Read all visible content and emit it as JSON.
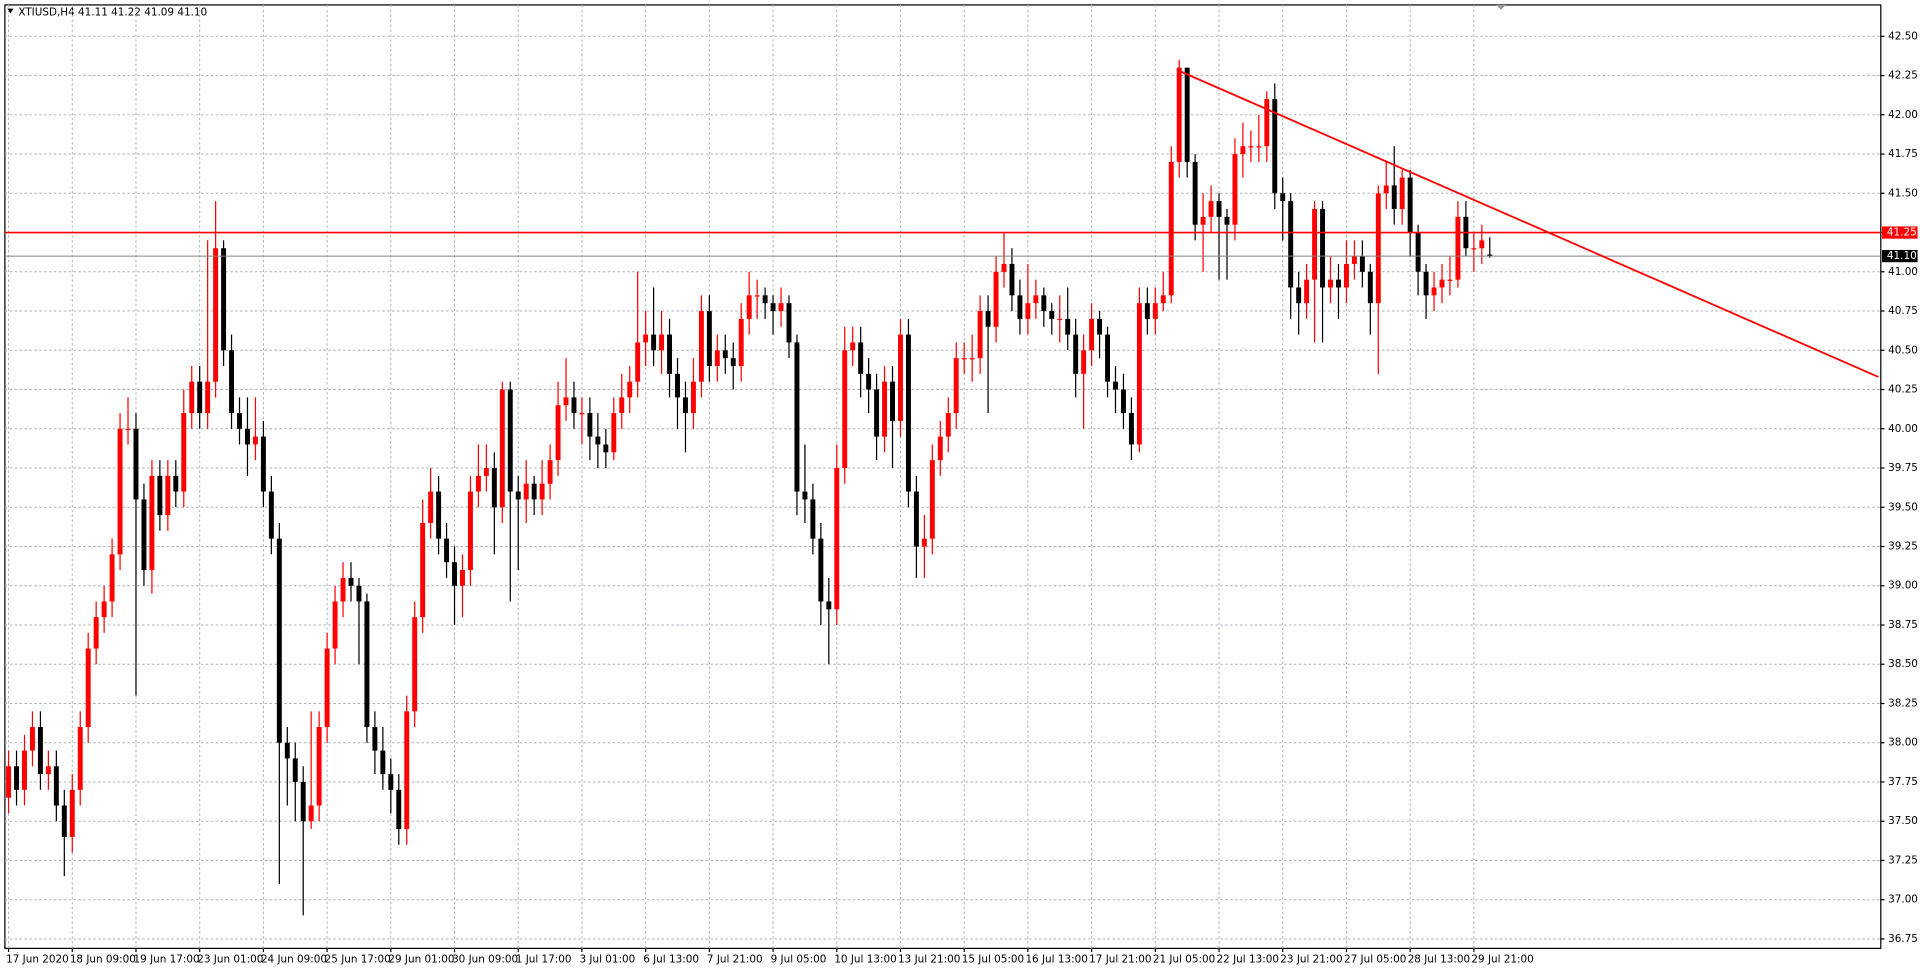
{
  "chart_data": {
    "type": "candlestick",
    "header": "XTIUSD,H4  41.11 41.22 41.09 41.10",
    "bull_color": "#ff0000",
    "bear_color": "#000000",
    "grid": true,
    "xlim": [
      -0.46,
      235.1
    ],
    "ylim": [
      36.69,
      42.7
    ],
    "yticks": [
      {
        "value": 36.75,
        "label": "36.75"
      },
      {
        "value": 37,
        "label": "37.00"
      },
      {
        "value": 37.25,
        "label": "37.25"
      },
      {
        "value": 37.5,
        "label": "37.50"
      },
      {
        "value": 37.75,
        "label": "37.75"
      },
      {
        "value": 38,
        "label": "38.00"
      },
      {
        "value": 38.25,
        "label": "38.25"
      },
      {
        "value": 38.5,
        "label": "38.50"
      },
      {
        "value": 38.75,
        "label": "38.75"
      },
      {
        "value": 39,
        "label": "39.00"
      },
      {
        "value": 39.25,
        "label": "39.25"
      },
      {
        "value": 39.5,
        "label": "39.50"
      },
      {
        "value": 39.75,
        "label": "39.75"
      },
      {
        "value": 40,
        "label": "40.00"
      },
      {
        "value": 40.25,
        "label": "40.25"
      },
      {
        "value": 40.5,
        "label": "40.50"
      },
      {
        "value": 40.75,
        "label": "40.75"
      },
      {
        "value": 41,
        "label": "41.00"
      },
      {
        "value": 41.25,
        "label": "41.25"
      },
      {
        "value": 41.5,
        "label": "41.50"
      },
      {
        "value": 41.75,
        "label": "41.75"
      },
      {
        "value": 42,
        "label": "42.00"
      },
      {
        "value": 42.25,
        "label": "42.25"
      },
      {
        "value": 42.5,
        "label": "42.50"
      }
    ],
    "xticks": [
      {
        "value": 0,
        "label": "17 Jun 2020"
      },
      {
        "value": 8,
        "label": "18 Jun 09:00"
      },
      {
        "value": 16,
        "label": "19 Jun 17:00"
      },
      {
        "value": 24,
        "label": "23 Jun 01:00"
      },
      {
        "value": 32,
        "label": "24 Jun 09:00"
      },
      {
        "value": 40,
        "label": "25 Jun 17:00"
      },
      {
        "value": 48,
        "label": "29 Jun 01:00"
      },
      {
        "value": 56,
        "label": "30 Jun 09:00"
      },
      {
        "value": 64,
        "label": "1 Jul 17:00"
      },
      {
        "value": 72,
        "label": "3 Jul 01:00"
      },
      {
        "value": 80,
        "label": "6 Jul 13:00"
      },
      {
        "value": 88,
        "label": "7 Jul 21:00"
      },
      {
        "value": 96,
        "label": "9 Jul 05:00"
      },
      {
        "value": 104,
        "label": "10 Jul 13:00"
      },
      {
        "value": 112,
        "label": "13 Jul 21:00"
      },
      {
        "value": 120,
        "label": "15 Jul 05:00"
      },
      {
        "value": 128,
        "label": "16 Jul 13:00"
      },
      {
        "value": 136,
        "label": "17 Jul 21:00"
      },
      {
        "value": 144,
        "label": "21 Jul 05:00"
      },
      {
        "value": 152,
        "label": "22 Jul 13:00"
      },
      {
        "value": 160,
        "label": "23 Jul 21:00"
      },
      {
        "value": 168,
        "label": "27 Jul 05:00"
      },
      {
        "value": 176,
        "label": "28 Jul 13:00"
      },
      {
        "value": 184,
        "label": "29 Jul 21:00"
      }
    ],
    "hline": {
      "value": 41.25,
      "label": "41.25",
      "color": "#ff0000"
    },
    "bid": {
      "value": 41.1,
      "label": "41.10",
      "color": "#808080"
    },
    "trendline": {
      "x": [
        147,
        234.8
      ],
      "y": [
        42.28,
        40.33
      ],
      "color": "#ff0000"
    },
    "candles": [
      [
        37.65,
        37.95,
        37.55,
        37.85
      ],
      [
        37.85,
        37.95,
        37.6,
        37.7
      ],
      [
        37.7,
        38.05,
        37.6,
        37.95
      ],
      [
        37.95,
        38.2,
        37.85,
        38.1
      ],
      [
        38.1,
        38.2,
        37.7,
        37.8
      ],
      [
        37.8,
        37.95,
        37.7,
        37.85
      ],
      [
        37.85,
        37.95,
        37.5,
        37.6
      ],
      [
        37.6,
        37.7,
        37.15,
        37.4
      ],
      [
        37.4,
        37.8,
        37.3,
        37.7
      ],
      [
        37.7,
        38.2,
        37.6,
        38.1
      ],
      [
        38.1,
        38.7,
        38.0,
        38.6
      ],
      [
        38.6,
        38.9,
        38.5,
        38.8
      ],
      [
        38.8,
        39.0,
        38.7,
        38.9
      ],
      [
        38.9,
        39.3,
        38.8,
        39.2
      ],
      [
        39.2,
        40.1,
        39.1,
        40.0
      ],
      [
        40.0,
        40.2,
        39.9,
        40.0
      ],
      [
        40.0,
        40.1,
        38.3,
        39.55
      ],
      [
        39.55,
        39.65,
        39.0,
        39.1
      ],
      [
        39.1,
        39.8,
        38.95,
        39.7
      ],
      [
        39.7,
        39.8,
        39.35,
        39.45
      ],
      [
        39.45,
        39.8,
        39.35,
        39.7
      ],
      [
        39.7,
        39.8,
        39.5,
        39.6
      ],
      [
        39.6,
        40.25,
        39.5,
        40.1
      ],
      [
        40.1,
        40.4,
        40.0,
        40.3
      ],
      [
        40.3,
        40.4,
        40.0,
        40.1
      ],
      [
        40.1,
        41.2,
        40.0,
        40.3
      ],
      [
        40.3,
        41.45,
        40.2,
        41.15
      ],
      [
        41.15,
        41.2,
        40.4,
        40.5
      ],
      [
        40.5,
        40.6,
        40.0,
        40.1
      ],
      [
        40.1,
        40.2,
        39.9,
        40.0
      ],
      [
        40.0,
        40.2,
        39.7,
        39.9
      ],
      [
        39.9,
        40.2,
        39.8,
        39.95
      ],
      [
        39.95,
        40.05,
        39.5,
        39.6
      ],
      [
        39.6,
        39.7,
        39.2,
        39.3
      ],
      [
        39.3,
        39.4,
        37.1,
        38.0
      ],
      [
        38.0,
        38.1,
        37.6,
        37.9
      ],
      [
        37.9,
        38.0,
        37.5,
        37.75
      ],
      [
        37.75,
        37.85,
        36.9,
        37.5
      ],
      [
        37.5,
        38.2,
        37.45,
        37.6
      ],
      [
        37.6,
        38.2,
        37.5,
        38.1
      ],
      [
        38.1,
        38.7,
        38.0,
        38.6
      ],
      [
        38.6,
        39.0,
        38.5,
        38.9
      ],
      [
        38.9,
        39.15,
        38.8,
        39.05
      ],
      [
        39.05,
        39.15,
        38.9,
        39.0
      ],
      [
        39.0,
        39.05,
        38.5,
        38.9
      ],
      [
        38.9,
        38.95,
        38.0,
        38.1
      ],
      [
        38.1,
        38.2,
        37.8,
        37.95
      ],
      [
        37.95,
        38.1,
        37.7,
        37.8
      ],
      [
        37.8,
        37.9,
        37.55,
        37.7
      ],
      [
        37.7,
        37.8,
        37.35,
        37.45
      ],
      [
        37.45,
        38.3,
        37.35,
        38.2
      ],
      [
        38.2,
        38.9,
        38.1,
        38.8
      ],
      [
        38.8,
        39.55,
        38.7,
        39.4
      ],
      [
        39.4,
        39.75,
        39.3,
        39.6
      ],
      [
        39.6,
        39.7,
        39.2,
        39.3
      ],
      [
        39.3,
        39.4,
        39.05,
        39.15
      ],
      [
        39.15,
        39.25,
        38.75,
        39.0
      ],
      [
        39.0,
        39.2,
        38.8,
        39.1
      ],
      [
        39.1,
        39.7,
        39.0,
        39.6
      ],
      [
        39.6,
        39.9,
        39.5,
        39.7
      ],
      [
        39.7,
        39.9,
        39.6,
        39.75
      ],
      [
        39.75,
        39.85,
        39.2,
        39.5
      ],
      [
        39.5,
        40.3,
        39.4,
        40.25
      ],
      [
        40.25,
        40.3,
        38.9,
        39.6
      ],
      [
        39.6,
        39.7,
        39.1,
        39.55
      ],
      [
        39.55,
        39.8,
        39.4,
        39.65
      ],
      [
        39.65,
        39.7,
        39.45,
        39.55
      ],
      [
        39.55,
        39.8,
        39.45,
        39.65
      ],
      [
        39.65,
        39.9,
        39.55,
        39.8
      ],
      [
        39.8,
        40.3,
        39.7,
        40.15
      ],
      [
        40.15,
        40.45,
        40.05,
        40.2
      ],
      [
        40.2,
        40.3,
        40.0,
        40.1
      ],
      [
        40.1,
        40.2,
        39.9,
        40.1
      ],
      [
        40.1,
        40.2,
        39.8,
        39.95
      ],
      [
        39.95,
        40.1,
        39.75,
        39.9
      ],
      [
        39.9,
        40.0,
        39.75,
        39.85
      ],
      [
        39.85,
        40.2,
        39.8,
        40.1
      ],
      [
        40.1,
        40.35,
        40.0,
        40.2
      ],
      [
        40.2,
        40.4,
        40.1,
        40.3
      ],
      [
        40.3,
        41.0,
        40.2,
        40.55
      ],
      [
        40.55,
        40.75,
        40.4,
        40.6
      ],
      [
        40.6,
        40.9,
        40.4,
        40.5
      ],
      [
        40.5,
        40.75,
        40.35,
        40.6
      ],
      [
        40.6,
        40.7,
        40.2,
        40.35
      ],
      [
        40.35,
        40.45,
        40.0,
        40.2
      ],
      [
        40.2,
        40.3,
        39.85,
        40.1
      ],
      [
        40.1,
        40.45,
        40.0,
        40.3
      ],
      [
        40.3,
        40.85,
        40.2,
        40.75
      ],
      [
        40.75,
        40.85,
        40.3,
        40.4
      ],
      [
        40.4,
        40.6,
        40.3,
        40.5
      ],
      [
        40.5,
        40.6,
        40.35,
        40.45
      ],
      [
        40.45,
        40.55,
        40.25,
        40.4
      ],
      [
        40.4,
        40.8,
        40.3,
        40.7
      ],
      [
        40.7,
        41.0,
        40.6,
        40.85
      ],
      [
        40.85,
        40.95,
        40.7,
        40.85
      ],
      [
        40.85,
        40.9,
        40.7,
        40.8
      ],
      [
        40.8,
        40.85,
        40.6,
        40.75
      ],
      [
        40.75,
        40.9,
        40.65,
        40.8
      ],
      [
        40.8,
        40.85,
        40.45,
        40.55
      ],
      [
        40.55,
        40.6,
        39.45,
        39.6
      ],
      [
        39.6,
        39.9,
        39.4,
        39.55
      ],
      [
        39.55,
        39.65,
        39.2,
        39.3
      ],
      [
        39.3,
        39.4,
        38.75,
        38.9
      ],
      [
        38.9,
        39.05,
        38.5,
        38.85
      ],
      [
        38.85,
        39.9,
        38.75,
        39.75
      ],
      [
        39.75,
        40.65,
        39.65,
        40.5
      ],
      [
        40.5,
        40.65,
        40.4,
        40.55
      ],
      [
        40.55,
        40.65,
        40.2,
        40.35
      ],
      [
        40.35,
        40.45,
        40.1,
        40.25
      ],
      [
        40.25,
        40.35,
        39.8,
        39.95
      ],
      [
        39.95,
        40.4,
        39.85,
        40.3
      ],
      [
        40.3,
        40.4,
        39.75,
        40.05
      ],
      [
        40.05,
        40.7,
        39.95,
        40.6
      ],
      [
        40.6,
        40.7,
        39.5,
        39.6
      ],
      [
        39.6,
        39.7,
        39.05,
        39.25
      ],
      [
        39.25,
        39.45,
        39.05,
        39.3
      ],
      [
        39.3,
        39.9,
        39.2,
        39.8
      ],
      [
        39.8,
        40.05,
        39.7,
        39.95
      ],
      [
        39.95,
        40.2,
        39.85,
        40.1
      ],
      [
        40.1,
        40.55,
        40.0,
        40.45
      ],
      [
        40.45,
        40.55,
        40.35,
        40.45
      ],
      [
        40.45,
        40.6,
        40.3,
        40.45
      ],
      [
        40.45,
        40.85,
        40.35,
        40.75
      ],
      [
        40.75,
        40.85,
        40.1,
        40.65
      ],
      [
        40.65,
        41.1,
        40.55,
        41.0
      ],
      [
        41.0,
        41.25,
        40.9,
        41.05
      ],
      [
        41.05,
        41.15,
        40.75,
        40.85
      ],
      [
        40.85,
        40.95,
        40.6,
        40.7
      ],
      [
        40.7,
        41.05,
        40.6,
        40.8
      ],
      [
        40.8,
        40.95,
        40.7,
        40.85
      ],
      [
        40.85,
        40.9,
        40.65,
        40.75
      ],
      [
        40.75,
        40.8,
        40.6,
        40.7
      ],
      [
        40.7,
        40.85,
        40.55,
        40.7
      ],
      [
        40.7,
        40.9,
        40.5,
        40.6
      ],
      [
        40.6,
        40.7,
        40.2,
        40.35
      ],
      [
        40.35,
        40.6,
        40.0,
        40.5
      ],
      [
        40.5,
        40.8,
        40.4,
        40.7
      ],
      [
        40.7,
        40.75,
        40.45,
        40.6
      ],
      [
        40.6,
        40.65,
        40.2,
        40.3
      ],
      [
        40.3,
        40.4,
        40.1,
        40.25
      ],
      [
        40.25,
        40.35,
        40.0,
        40.1
      ],
      [
        40.1,
        40.2,
        39.8,
        39.9
      ],
      [
        39.9,
        40.9,
        39.85,
        40.8
      ],
      [
        40.8,
        40.9,
        40.6,
        40.7
      ],
      [
        40.7,
        40.9,
        40.6,
        40.8
      ],
      [
        40.8,
        41.0,
        40.75,
        40.85
      ],
      [
        40.85,
        41.8,
        40.8,
        41.7
      ],
      [
        41.7,
        42.35,
        41.6,
        42.3
      ],
      [
        42.3,
        42.3,
        41.6,
        41.7
      ],
      [
        41.7,
        41.75,
        41.2,
        41.3
      ],
      [
        41.3,
        41.5,
        41.0,
        41.35
      ],
      [
        41.35,
        41.55,
        41.25,
        41.45
      ],
      [
        41.45,
        41.5,
        40.95,
        41.35
      ],
      [
        41.35,
        41.4,
        40.95,
        41.3
      ],
      [
        41.3,
        41.85,
        41.2,
        41.75
      ],
      [
        41.75,
        41.95,
        41.6,
        41.8
      ],
      [
        41.8,
        41.9,
        41.7,
        41.8
      ],
      [
        41.8,
        42.0,
        41.7,
        41.8
      ],
      [
        41.8,
        42.15,
        41.7,
        42.1
      ],
      [
        42.1,
        42.2,
        41.4,
        41.5
      ],
      [
        41.5,
        41.6,
        41.2,
        41.45
      ],
      [
        41.45,
        41.5,
        40.7,
        40.9
      ],
      [
        40.9,
        41.0,
        40.6,
        40.8
      ],
      [
        40.8,
        41.05,
        40.7,
        40.95
      ],
      [
        40.95,
        41.45,
        40.55,
        41.4
      ],
      [
        41.4,
        41.45,
        40.55,
        40.9
      ],
      [
        40.9,
        41.1,
        40.8,
        40.95
      ],
      [
        40.95,
        41.05,
        40.7,
        40.9
      ],
      [
        40.9,
        41.2,
        40.8,
        41.05
      ],
      [
        41.05,
        41.2,
        40.95,
        41.1
      ],
      [
        41.1,
        41.2,
        40.9,
        41.0
      ],
      [
        41.0,
        41.05,
        40.6,
        40.8
      ],
      [
        40.8,
        41.55,
        40.35,
        41.5
      ],
      [
        41.5,
        41.7,
        41.4,
        41.55
      ],
      [
        41.55,
        41.8,
        41.3,
        41.4
      ],
      [
        41.4,
        41.65,
        41.3,
        41.6
      ],
      [
        41.6,
        41.65,
        41.1,
        41.25
      ],
      [
        41.25,
        41.3,
        40.85,
        41.0
      ],
      [
        41.0,
        41.05,
        40.7,
        40.85
      ],
      [
        40.85,
        41.0,
        40.75,
        40.9
      ],
      [
        40.9,
        41.05,
        40.8,
        40.95
      ],
      [
        40.95,
        41.1,
        40.85,
        40.95
      ],
      [
        40.95,
        41.45,
        40.9,
        41.35
      ],
      [
        41.35,
        41.45,
        41.1,
        41.15
      ],
      [
        41.15,
        41.25,
        41.0,
        41.15
      ],
      [
        41.15,
        41.3,
        41.05,
        41.2
      ],
      [
        41.11,
        41.22,
        41.09,
        41.1
      ]
    ]
  }
}
